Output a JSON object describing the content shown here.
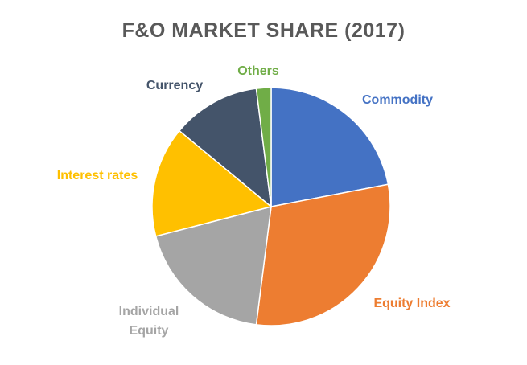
{
  "chart_data": {
    "type": "pie",
    "title": "F&O MARKET SHARE (2017)",
    "categories": [
      "Commodity",
      "Equity Index",
      "Individual Equity",
      "Interest rates",
      "Currency",
      "Others"
    ],
    "values": [
      22,
      30,
      19,
      15,
      12,
      2
    ],
    "colors": [
      "#4472c4",
      "#ed7d31",
      "#a5a5a5",
      "#ffc000",
      "#44546a",
      "#70ad47"
    ]
  }
}
